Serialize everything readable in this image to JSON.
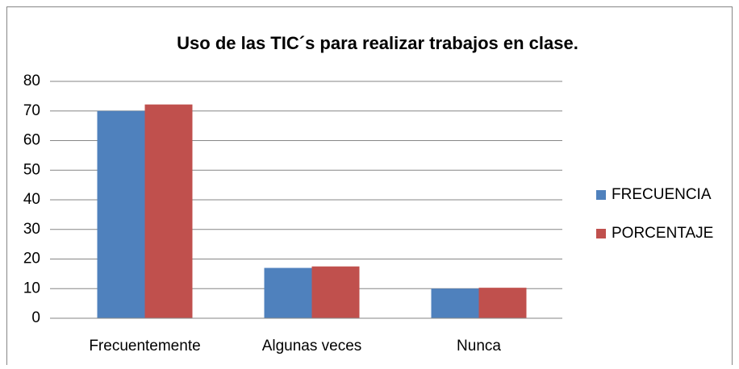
{
  "chart_data": {
    "type": "bar",
    "title": "Uso de las TIC´s para realizar trabajos en clase.",
    "categories": [
      "Frecuentemente",
      "Algunas veces",
      "Nunca"
    ],
    "series": [
      {
        "name": "FRECUENCIA",
        "color": "#4f81bd",
        "values": [
          70,
          17,
          10
        ]
      },
      {
        "name": "PORCENTAJE",
        "color": "#c0504d",
        "values": [
          72.2,
          17.5,
          10.3
        ]
      }
    ],
    "ylim": [
      0,
      80
    ],
    "yticks": [
      0,
      10,
      20,
      30,
      40,
      50,
      60,
      70,
      80
    ],
    "grid": true,
    "legend": "right"
  }
}
